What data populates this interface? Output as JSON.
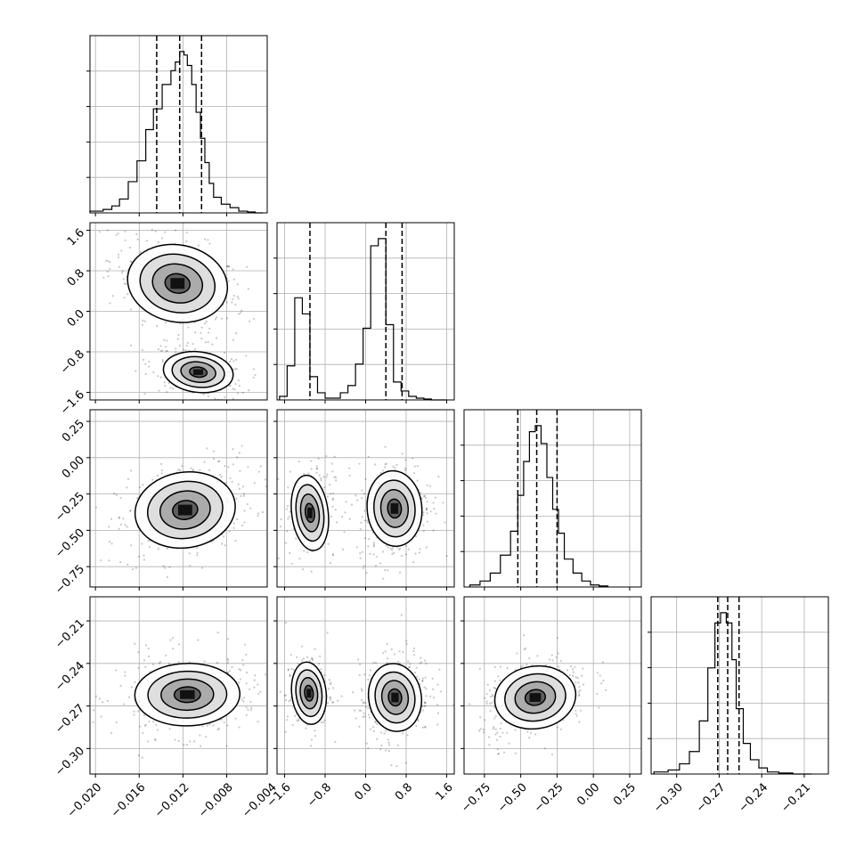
{
  "chart_data": {
    "type": "corner",
    "grid": true,
    "n_params": 4,
    "params": [
      {
        "range": [
          -0.0205,
          -0.0043
        ],
        "ticks": [
          -0.02,
          -0.016,
          -0.012,
          -0.008,
          -0.004
        ],
        "tick_labels": [
          "−0.020",
          "−0.016",
          "−0.012",
          "−0.008",
          "−0.004"
        ],
        "quantiles": [
          -0.0144,
          -0.0123,
          -0.0103
        ],
        "hist_edges": [
          -0.0205,
          -0.0193,
          -0.0185,
          -0.0178,
          -0.017,
          -0.0162,
          -0.0154,
          -0.0147,
          -0.0139,
          -0.0131,
          -0.0127,
          -0.0123,
          -0.0119,
          -0.0116,
          -0.0112,
          -0.0108,
          -0.0104,
          -0.01,
          -0.0096,
          -0.0092,
          -0.0085,
          -0.0077,
          -0.0069,
          -0.0061,
          -0.0054,
          -0.0047
        ],
        "hist_counts": [
          0.01,
          0.02,
          0.04,
          0.08,
          0.18,
          0.3,
          0.48,
          0.6,
          0.74,
          0.82,
          0.87,
          0.93,
          0.91,
          0.85,
          0.74,
          0.58,
          0.43,
          0.29,
          0.17,
          0.09,
          0.05,
          0.03,
          0.01,
          0.005,
          0.0
        ]
      },
      {
        "range": [
          -1.75,
          1.75
        ],
        "ticks": [
          -1.6,
          -0.8,
          0.0,
          0.8,
          1.6
        ],
        "tick_labels": [
          "−1.6",
          "−0.8",
          "0.0",
          "0.8",
          "1.6"
        ],
        "quantiles": [
          -1.1,
          0.4,
          0.72
        ],
        "hist_edges": [
          -1.7,
          -1.55,
          -1.4,
          -1.25,
          -1.1,
          -0.95,
          -0.8,
          -0.65,
          -0.5,
          -0.35,
          -0.2,
          -0.05,
          0.1,
          0.25,
          0.4,
          0.55,
          0.7,
          0.85,
          1.0,
          1.15,
          1.3,
          1.45,
          1.6
        ],
        "hist_counts": [
          0.02,
          0.19,
          0.57,
          0.48,
          0.13,
          0.04,
          0.01,
          0.01,
          0.04,
          0.08,
          0.2,
          0.4,
          0.86,
          0.9,
          0.42,
          0.1,
          0.05,
          0.02,
          0.01,
          0.005,
          0.0,
          0.0
        ]
      },
      {
        "range": [
          -0.89,
          0.33
        ],
        "ticks": [
          -0.75,
          -0.5,
          -0.25,
          0.0,
          0.25
        ],
        "tick_labels": [
          "−0.75",
          "−0.50",
          "−0.25",
          "0.00",
          "0.25"
        ],
        "quantiles": [
          -0.52,
          -0.39,
          -0.25
        ],
        "hist_edges": [
          -0.85,
          -0.78,
          -0.71,
          -0.64,
          -0.57,
          -0.52,
          -0.48,
          -0.44,
          -0.4,
          -0.36,
          -0.32,
          -0.28,
          -0.24,
          -0.2,
          -0.14,
          -0.08,
          -0.02,
          0.04,
          0.1
        ],
        "hist_counts": [
          0.01,
          0.03,
          0.07,
          0.16,
          0.28,
          0.46,
          0.63,
          0.78,
          0.81,
          0.72,
          0.55,
          0.39,
          0.27,
          0.14,
          0.07,
          0.03,
          0.01,
          0.005
        ]
      },
      {
        "range": [
          -0.318,
          -0.193
        ],
        "ticks": [
          -0.3,
          -0.27,
          -0.24,
          -0.21
        ],
        "tick_labels": [
          "−0.30",
          "−0.27",
          "−0.24",
          "−0.21"
        ],
        "quantiles": [
          -0.271,
          -0.264,
          -0.256
        ],
        "hist_edges": [
          -0.316,
          -0.306,
          -0.298,
          -0.291,
          -0.284,
          -0.278,
          -0.273,
          -0.269,
          -0.265,
          -0.261,
          -0.258,
          -0.253,
          -0.248,
          -0.242,
          -0.236,
          -0.228,
          -0.218,
          -0.205
        ],
        "hist_counts": [
          0.01,
          0.02,
          0.05,
          0.11,
          0.26,
          0.52,
          0.74,
          0.79,
          0.74,
          0.56,
          0.32,
          0.15,
          0.07,
          0.03,
          0.01,
          0.005,
          0.0
        ]
      }
    ],
    "pairs": [
      {
        "row": 1,
        "col": 0,
        "blobs": [
          {
            "cx": -0.0125,
            "cy": 0.55,
            "sx": 0.0023,
            "sy": 0.38,
            "rho": -0.45,
            "w": 1.0
          },
          {
            "cx": -0.0106,
            "cy": -1.2,
            "sx": 0.0016,
            "sy": 0.2,
            "rho": -0.35,
            "w": 0.75
          }
        ]
      },
      {
        "row": 2,
        "col": 0,
        "blobs": [
          {
            "cx": -0.0118,
            "cy": -0.36,
            "sx": 0.0023,
            "sy": 0.13,
            "rho": 0.35,
            "w": 1.0
          }
        ]
      },
      {
        "row": 3,
        "col": 0,
        "blobs": [
          {
            "cx": -0.0116,
            "cy": -0.262,
            "sx": 0.0024,
            "sy": 0.011,
            "rho": 0.05,
            "w": 1.0
          }
        ]
      },
      {
        "row": 2,
        "col": 1,
        "blobs": [
          {
            "cx": -1.1,
            "cy": -0.38,
            "sx": 0.18,
            "sy": 0.13,
            "rho": 0.1,
            "w": 0.5
          },
          {
            "cx": 0.57,
            "cy": -0.35,
            "sx": 0.27,
            "sy": 0.13,
            "rho": 0.1,
            "w": 1.0
          }
        ]
      },
      {
        "row": 3,
        "col": 1,
        "blobs": [
          {
            "cx": -1.12,
            "cy": -0.261,
            "sx": 0.17,
            "sy": 0.011,
            "rho": 0.1,
            "w": 0.5
          },
          {
            "cx": 0.58,
            "cy": -0.264,
            "sx": 0.26,
            "sy": 0.012,
            "rho": 0.2,
            "w": 1.0
          }
        ]
      },
      {
        "row": 3,
        "col": 2,
        "blobs": [
          {
            "cx": -0.4,
            "cy": -0.264,
            "sx": 0.14,
            "sy": 0.011,
            "rho": 0.35,
            "w": 1.0
          }
        ]
      }
    ]
  },
  "colors": {
    "contour": "#000000",
    "density": "#000000",
    "grid": "#b0b0b0",
    "axes": "#000000"
  }
}
